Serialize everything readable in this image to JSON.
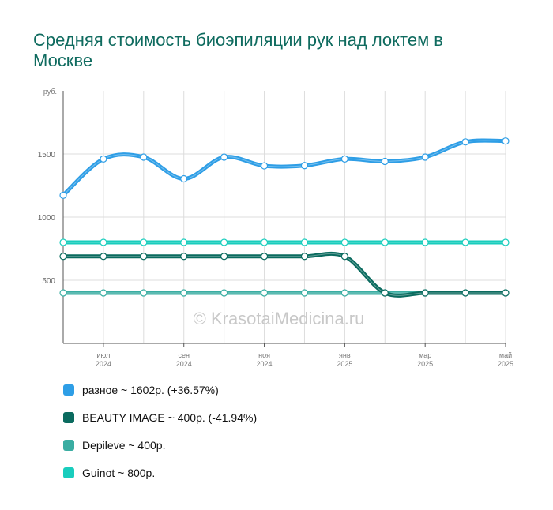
{
  "title": "Средняя стоимость биоэпиляции рук над локтем в Москве",
  "watermark": "© KrasotaiMedicina.ru",
  "chart_data": {
    "type": "line",
    "y_unit": "руб.",
    "yticks": [
      500,
      1000,
      1500
    ],
    "ylim": [
      0,
      2000
    ],
    "grid": true,
    "legend_position": "bottom",
    "x_ticks": [
      {
        "month": "июл",
        "year": "2024"
      },
      {
        "month": "сен",
        "year": "2024"
      },
      {
        "month": "ноя",
        "year": "2024"
      },
      {
        "month": "янв",
        "year": "2025"
      },
      {
        "month": "мар",
        "year": "2025"
      },
      {
        "month": "май",
        "year": "2025"
      }
    ],
    "x": [
      "2024-06",
      "2024-07",
      "2024-08",
      "2024-09",
      "2024-10",
      "2024-11",
      "2024-12",
      "2025-01",
      "2025-02",
      "2025-03",
      "2025-04",
      "2025-05"
    ],
    "series": [
      {
        "name": "разное",
        "summary": "разное ~ 1602р. (+36.57%)",
        "color": "#2e9ee6",
        "values": [
          1173,
          1460,
          1475,
          1303,
          1475,
          1406,
          1408,
          1460,
          1441,
          1475,
          1595,
          1602
        ]
      },
      {
        "name": "BEAUTY IMAGE",
        "summary": "BEAUTY IMAGE ~ 400р. (-41.94%)",
        "color": "#0b6b5f",
        "values": [
          689,
          689,
          689,
          689,
          689,
          689,
          689,
          689,
          400,
          400,
          400,
          400
        ]
      },
      {
        "name": "Depileve",
        "summary": "Depileve ~ 400р.",
        "color": "#3aada2",
        "values": [
          400,
          400,
          400,
          400,
          400,
          400,
          400,
          400,
          400,
          400,
          400,
          400
        ]
      },
      {
        "name": "Guinot",
        "summary": "Guinot ~ 800р.",
        "color": "#19cdbd",
        "values": [
          800,
          800,
          800,
          800,
          800,
          800,
          800,
          800,
          800,
          800,
          800,
          800
        ]
      }
    ]
  }
}
